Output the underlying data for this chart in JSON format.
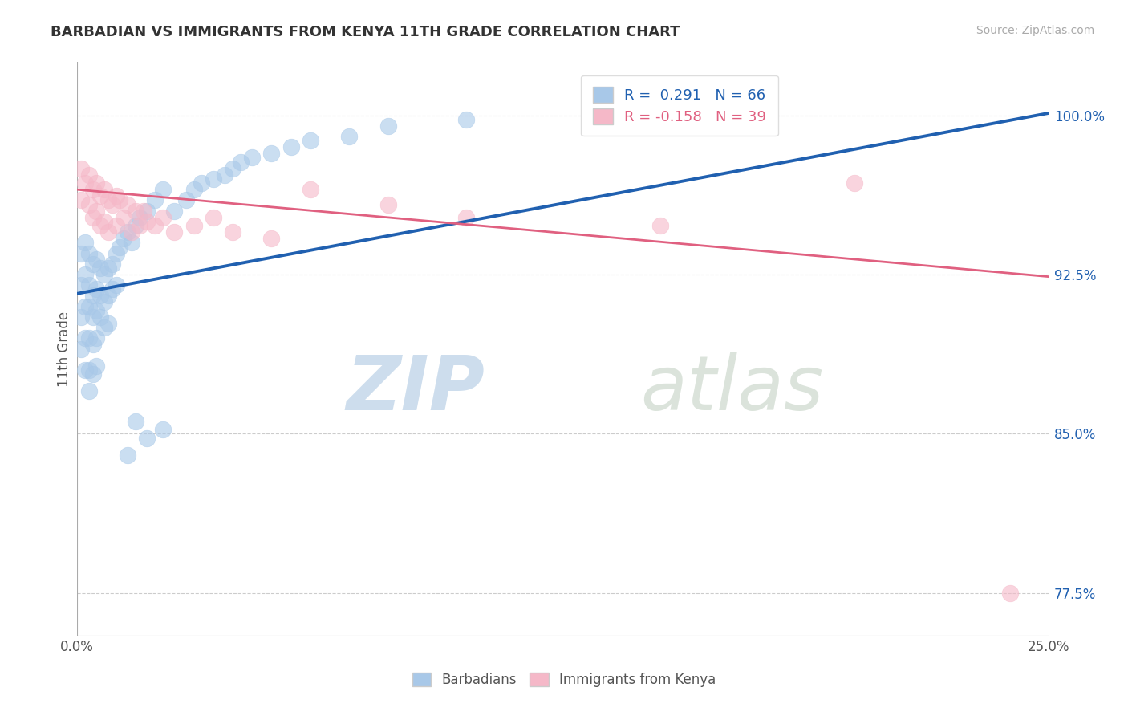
{
  "title": "BARBADIAN VS IMMIGRANTS FROM KENYA 11TH GRADE CORRELATION CHART",
  "source_text": "Source: ZipAtlas.com",
  "ylabel": "11th Grade",
  "xlim": [
    0.0,
    0.25
  ],
  "ylim": [
    0.755,
    1.025
  ],
  "xticks": [
    0.0,
    0.05,
    0.1,
    0.15,
    0.2,
    0.25
  ],
  "xticklabels": [
    "0.0%",
    "",
    "",
    "",
    "",
    "25.0%"
  ],
  "yticks": [
    0.775,
    0.85,
    0.925,
    1.0
  ],
  "yticklabels_right": [
    "77.5%",
    "85.0%",
    "92.5%",
    "100.0%"
  ],
  "blue_R": 0.291,
  "blue_N": 66,
  "pink_R": -0.158,
  "pink_N": 39,
  "blue_color": "#a8c8e8",
  "pink_color": "#f5b8c8",
  "blue_line_color": "#2060b0",
  "pink_line_color": "#e06080",
  "blue_scatter_x": [
    0.001,
    0.001,
    0.001,
    0.001,
    0.002,
    0.002,
    0.002,
    0.002,
    0.002,
    0.003,
    0.003,
    0.003,
    0.003,
    0.003,
    0.003,
    0.004,
    0.004,
    0.004,
    0.004,
    0.004,
    0.005,
    0.005,
    0.005,
    0.005,
    0.005,
    0.006,
    0.006,
    0.006,
    0.007,
    0.007,
    0.007,
    0.008,
    0.008,
    0.008,
    0.009,
    0.009,
    0.01,
    0.01,
    0.011,
    0.012,
    0.013,
    0.014,
    0.015,
    0.016,
    0.018,
    0.02,
    0.022,
    0.025,
    0.028,
    0.03,
    0.032,
    0.035,
    0.038,
    0.04,
    0.042,
    0.045,
    0.05,
    0.055,
    0.06,
    0.07,
    0.08,
    0.1,
    0.015,
    0.013,
    0.018,
    0.022
  ],
  "blue_scatter_y": [
    0.935,
    0.92,
    0.905,
    0.89,
    0.94,
    0.925,
    0.91,
    0.895,
    0.88,
    0.935,
    0.92,
    0.91,
    0.895,
    0.88,
    0.87,
    0.93,
    0.915,
    0.905,
    0.892,
    0.878,
    0.932,
    0.918,
    0.908,
    0.895,
    0.882,
    0.928,
    0.915,
    0.905,
    0.925,
    0.912,
    0.9,
    0.928,
    0.915,
    0.902,
    0.93,
    0.918,
    0.935,
    0.92,
    0.938,
    0.942,
    0.945,
    0.94,
    0.948,
    0.952,
    0.955,
    0.96,
    0.965,
    0.955,
    0.96,
    0.965,
    0.968,
    0.97,
    0.972,
    0.975,
    0.978,
    0.98,
    0.982,
    0.985,
    0.988,
    0.99,
    0.995,
    0.998,
    0.856,
    0.84,
    0.848,
    0.852
  ],
  "pink_scatter_x": [
    0.001,
    0.001,
    0.002,
    0.003,
    0.003,
    0.004,
    0.004,
    0.005,
    0.005,
    0.006,
    0.006,
    0.007,
    0.007,
    0.008,
    0.008,
    0.009,
    0.01,
    0.01,
    0.011,
    0.012,
    0.013,
    0.014,
    0.015,
    0.016,
    0.017,
    0.018,
    0.02,
    0.022,
    0.025,
    0.03,
    0.035,
    0.04,
    0.05,
    0.06,
    0.08,
    0.1,
    0.15,
    0.2,
    0.24
  ],
  "pink_scatter_y": [
    0.975,
    0.96,
    0.968,
    0.972,
    0.958,
    0.965,
    0.952,
    0.968,
    0.955,
    0.962,
    0.948,
    0.965,
    0.95,
    0.96,
    0.945,
    0.958,
    0.962,
    0.948,
    0.96,
    0.952,
    0.958,
    0.945,
    0.955,
    0.948,
    0.955,
    0.95,
    0.948,
    0.952,
    0.945,
    0.948,
    0.952,
    0.945,
    0.942,
    0.965,
    0.958,
    0.952,
    0.948,
    0.968,
    0.775
  ],
  "blue_trend_x": [
    0.0,
    0.25
  ],
  "blue_trend_y": [
    0.916,
    1.001
  ],
  "pink_trend_x": [
    0.0,
    0.25
  ],
  "pink_trend_y": [
    0.965,
    0.924
  ],
  "watermark_zip": "ZIP",
  "watermark_atlas": "atlas",
  "legend_label_blue": "Barbadians",
  "legend_label_pink": "Immigrants from Kenya",
  "figsize": [
    14.06,
    8.92
  ],
  "dpi": 100
}
